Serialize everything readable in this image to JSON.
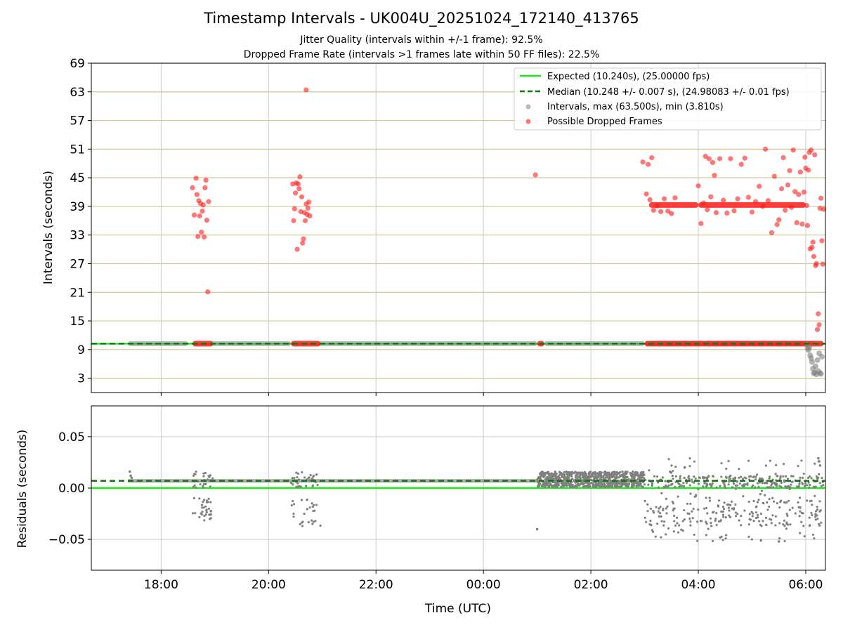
{
  "title": "Timestamp Intervals - UK004U_20251024_172140_413765",
  "subtitle_1": "Jitter Quality (intervals within +/-1 frame): 92.5%",
  "subtitle_2": "Dropped Frame Rate (intervals >1 frames late within 50 FF files): 22.5%",
  "colors": {
    "expected": "#1ee61e",
    "median": "#0a7a0a",
    "intervals": "#808080",
    "dropped": "#ff1a1a",
    "hgrid": "#d4c690",
    "vgrid": "#cccccc"
  },
  "chart_data": [
    {
      "type": "scatter",
      "panel": "top",
      "ylabel": "Intervals (seconds)",
      "xlabel": "",
      "ylim": [
        0,
        69
      ],
      "yticks": [
        "3",
        "9",
        "15",
        "21",
        "27",
        "33",
        "39",
        "45",
        "51",
        "57",
        "63",
        "69"
      ],
      "grid": "on",
      "legend_position": "top-right",
      "legend": [
        "Expected (10.240s), (25.00000 fps)",
        "Median (10.248 +/- 0.007 s), (24.98083 +/- 0.01 fps)",
        "Intervals, max (63.500s), min (3.810s)",
        "Possible Dropped Frames"
      ],
      "series": [
        {
          "name": "Expected (10.240s), (25.00000 fps)",
          "style": "solid line",
          "y": 10.24
        },
        {
          "name": "Median (10.248 +/- 0.007 s), (24.98083 +/- 0.01 fps)",
          "style": "dashed line",
          "y": 10.248
        },
        {
          "name": "Intervals, max (63.500s), min (3.810s)",
          "style": "gray markers",
          "baseline_segments": [
            [
              "17:23",
              "18:30"
            ],
            [
              "18:55",
              "20:25"
            ],
            [
              "20:55",
              "01:00"
            ],
            [
              "01:08",
              "03:00"
            ],
            [
              "03:00",
              "06:08"
            ]
          ],
          "points": [
            [
              "06:01",
              10.1
            ],
            [
              "06:02",
              9.3
            ],
            [
              "06:03",
              8.9
            ],
            [
              "06:04",
              9.5
            ],
            [
              "06:05",
              7.8
            ],
            [
              "06:06",
              7.2
            ],
            [
              "06:07",
              6.4
            ],
            [
              "06:08",
              5.0
            ],
            [
              "06:09",
              4.0
            ],
            [
              "06:10",
              4.2
            ],
            [
              "06:11",
              5.5
            ],
            [
              "06:12",
              3.8
            ],
            [
              "06:13",
              6.8
            ],
            [
              "06:14",
              4.5
            ],
            [
              "06:15",
              8.2
            ],
            [
              "06:16",
              4.1
            ],
            [
              "06:17",
              3.9
            ],
            [
              "06:18",
              7.5
            ]
          ]
        },
        {
          "name": "Possible Dropped Frames",
          "style": "red markers",
          "baseline_segments": [
            [
              "18:35",
              "18:58"
            ],
            [
              "20:25",
              "20:58"
            ],
            [
              "01:00",
              "01:08"
            ],
            [
              "03:00",
              "06:20"
            ]
          ],
          "band_segments": [
            [
              "03:05",
              "04:00"
            ],
            [
              "04:00",
              "06:00"
            ]
          ],
          "band_y": 39.3,
          "points": [
            [
              "18:35",
              42.9
            ],
            [
              "18:37",
              37.2
            ],
            [
              "18:39",
              44.9
            ],
            [
              "18:40",
              41.5
            ],
            [
              "18:41",
              32.7
            ],
            [
              "18:42",
              40.2
            ],
            [
              "18:43",
              37.0
            ],
            [
              "18:44",
              39.6
            ],
            [
              "18:45",
              33.6
            ],
            [
              "18:46",
              38.0
            ],
            [
              "18:47",
              39.3
            ],
            [
              "18:48",
              32.6
            ],
            [
              "18:49",
              42.9
            ],
            [
              "18:50",
              44.5
            ],
            [
              "18:51",
              36.1
            ],
            [
              "18:52",
              21.1
            ],
            [
              "18:53",
              40.0
            ],
            [
              "20:27",
              43.7
            ],
            [
              "20:28",
              36.0
            ],
            [
              "20:29",
              38.5
            ],
            [
              "20:30",
              41.8
            ],
            [
              "20:31",
              43.9
            ],
            [
              "20:32",
              30.0
            ],
            [
              "20:33",
              43.7
            ],
            [
              "20:34",
              42.7
            ],
            [
              "20:35",
              45.2
            ],
            [
              "20:36",
              37.9
            ],
            [
              "20:37",
              41.0
            ],
            [
              "20:38",
              31.3
            ],
            [
              "20:39",
              32.2
            ],
            [
              "20:40",
              37.7
            ],
            [
              "20:41",
              36.0
            ],
            [
              "20:42",
              39.5
            ],
            [
              "20:43",
              37.3
            ],
            [
              "20:44",
              38.6
            ],
            [
              "20:45",
              39.9
            ],
            [
              "20:46",
              37.0
            ],
            [
              "20:42",
              63.4
            ],
            [
              "00:58",
              45.6
            ],
            [
              "02:58",
              48.3
            ],
            [
              "03:02",
              41.6
            ],
            [
              "03:04",
              47.8
            ],
            [
              "03:06",
              40.4
            ],
            [
              "03:08",
              49.2
            ],
            [
              "03:10",
              38.2
            ],
            [
              "03:14",
              39.1
            ],
            [
              "03:18",
              37.9
            ],
            [
              "03:22",
              40.6
            ],
            [
              "03:26",
              38.0
            ],
            [
              "03:30",
              37.5
            ],
            [
              "03:34",
              40.8
            ],
            [
              "04:00",
              43.3
            ],
            [
              "04:03",
              35.4
            ],
            [
              "04:06",
              39.7
            ],
            [
              "04:08",
              49.5
            ],
            [
              "04:10",
              38.3
            ],
            [
              "04:12",
              49.0
            ],
            [
              "04:14",
              41.0
            ],
            [
              "04:16",
              48.2
            ],
            [
              "04:18",
              45.5
            ],
            [
              "04:20",
              37.7
            ],
            [
              "04:24",
              49.0
            ],
            [
              "04:28",
              40.3
            ],
            [
              "04:32",
              37.6
            ],
            [
              "04:36",
              49.0
            ],
            [
              "04:40",
              38.1
            ],
            [
              "04:44",
              40.6
            ],
            [
              "04:48",
              47.8
            ],
            [
              "04:52",
              49.1
            ],
            [
              "04:56",
              40.9
            ],
            [
              "05:00",
              37.8
            ],
            [
              "05:04",
              40.0
            ],
            [
              "05:08",
              43.2
            ],
            [
              "05:12",
              39.0
            ],
            [
              "05:15",
              51.0
            ],
            [
              "05:18",
              40.2
            ],
            [
              "05:22",
              33.5
            ],
            [
              "05:25",
              45.3
            ],
            [
              "05:28",
              35.2
            ],
            [
              "05:30",
              36.2
            ],
            [
              "05:33",
              42.7
            ],
            [
              "05:35",
              49.2
            ],
            [
              "05:37",
              38.2
            ],
            [
              "05:40",
              43.5
            ],
            [
              "05:42",
              46.5
            ],
            [
              "05:44",
              38.8
            ],
            [
              "05:46",
              50.8
            ],
            [
              "05:48",
              42.1
            ],
            [
              "05:50",
              35.6
            ],
            [
              "05:52",
              41.5
            ],
            [
              "05:54",
              46.2
            ],
            [
              "05:56",
              35.3
            ],
            [
              "05:58",
              42.0
            ],
            [
              "05:59",
              49.3
            ],
            [
              "06:00",
              47.0
            ],
            [
              "06:01",
              39.2
            ],
            [
              "06:02",
              35.0
            ],
            [
              "06:03",
              46.6
            ],
            [
              "06:04",
              50.3
            ],
            [
              "06:05",
              30.1
            ],
            [
              "06:06",
              50.8
            ],
            [
              "06:07",
              30.4
            ],
            [
              "06:08",
              31.5
            ],
            [
              "06:09",
              28.5
            ],
            [
              "06:10",
              49.8
            ],
            [
              "06:11",
              26.6
            ],
            [
              "06:12",
              27.0
            ],
            [
              "06:13",
              13.2
            ],
            [
              "06:14",
              16.5
            ],
            [
              "06:15",
              14.2
            ],
            [
              "06:16",
              38.6
            ],
            [
              "06:17",
              40.7
            ],
            [
              "06:18",
              31.8
            ],
            [
              "06:19",
              26.9
            ],
            [
              "06:20",
              38.4
            ]
          ]
        }
      ]
    },
    {
      "type": "scatter",
      "panel": "bottom",
      "ylabel": "Residuals (seconds)",
      "xlabel": "Time (UTC)",
      "ylim": [
        -0.08,
        0.08
      ],
      "yticks": [
        "−0.05",
        "0.00",
        "0.05"
      ],
      "xlim": [
        "16:42",
        "06:22"
      ],
      "xticks": [
        "18:00",
        "20:00",
        "22:00",
        "00:00",
        "02:00",
        "04:00",
        "06:00"
      ],
      "grid": "on",
      "series": [
        {
          "name": "Expected (10.240s), (25.00000 fps)",
          "style": "solid line",
          "y": 0.0
        },
        {
          "name": "Median (10.248 +/- 0.007 s), (24.98083 +/- 0.01 fps)",
          "style": "dashed line",
          "y": 0.007
        },
        {
          "name": "Intervals, max (63.500s), min (3.810s)",
          "style": "gray dots",
          "dense_band": {
            "x": [
              "01:00",
              "03:00"
            ],
            "y": [
              0.001,
              0.016
            ]
          },
          "baseline_segments": [
            [
              "17:23",
              "01:00"
            ]
          ],
          "baseline_y": 0.007,
          "clusters": [
            {
              "x": [
                "18:35",
                "18:58"
              ],
              "y": [
                -0.032,
                0.016
              ]
            },
            {
              "x": [
                "20:25",
                "20:58"
              ],
              "y": [
                -0.037,
                0.016
              ]
            },
            {
              "x": [
                "03:00",
                "06:20"
              ],
              "y": [
                -0.052,
                0.029
              ]
            }
          ],
          "points": [
            [
              "17:25",
              0.016
            ],
            [
              "17:26",
              0.012
            ],
            [
              "17:27",
              0.01
            ],
            [
              "01:00",
              -0.04
            ],
            [
              "06:14",
              0.029
            ],
            [
              "06:15",
              0.026
            ],
            [
              "06:16",
              0.022
            ],
            [
              "05:30",
              -0.052
            ],
            [
              "05:10",
              -0.051
            ]
          ]
        }
      ]
    }
  ]
}
